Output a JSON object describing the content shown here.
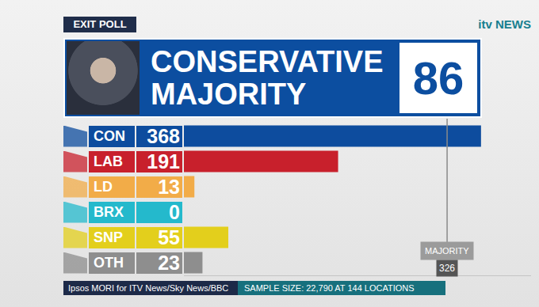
{
  "header": {
    "label": "EXIT POLL",
    "brand": "itv NEWS",
    "headline": [
      "CONSERVATIVE",
      "MAJORITY"
    ],
    "majority": 86
  },
  "chart_data": {
    "type": "bar",
    "orientation": "horizontal",
    "categories": [
      "CON",
      "LAB",
      "LD",
      "BRX",
      "SNP",
      "OTH"
    ],
    "values": [
      368,
      191,
      13,
      0,
      55,
      23
    ],
    "colors": [
      "#0d4c9e",
      "#c8202c",
      "#f2ac48",
      "#24b9cc",
      "#e3cf1c",
      "#8e8e8e"
    ],
    "xlim": [
      0,
      430
    ],
    "tick_labels": false,
    "grid": false,
    "data_labels": true,
    "reference_line": {
      "value": 326,
      "label": "MAJORITY"
    }
  },
  "footer": {
    "source": "Ipsos MORI for ITV News/Sky News/BBC",
    "sample": "SAMPLE SIZE: 22,790 AT 144 LOCATIONS"
  }
}
